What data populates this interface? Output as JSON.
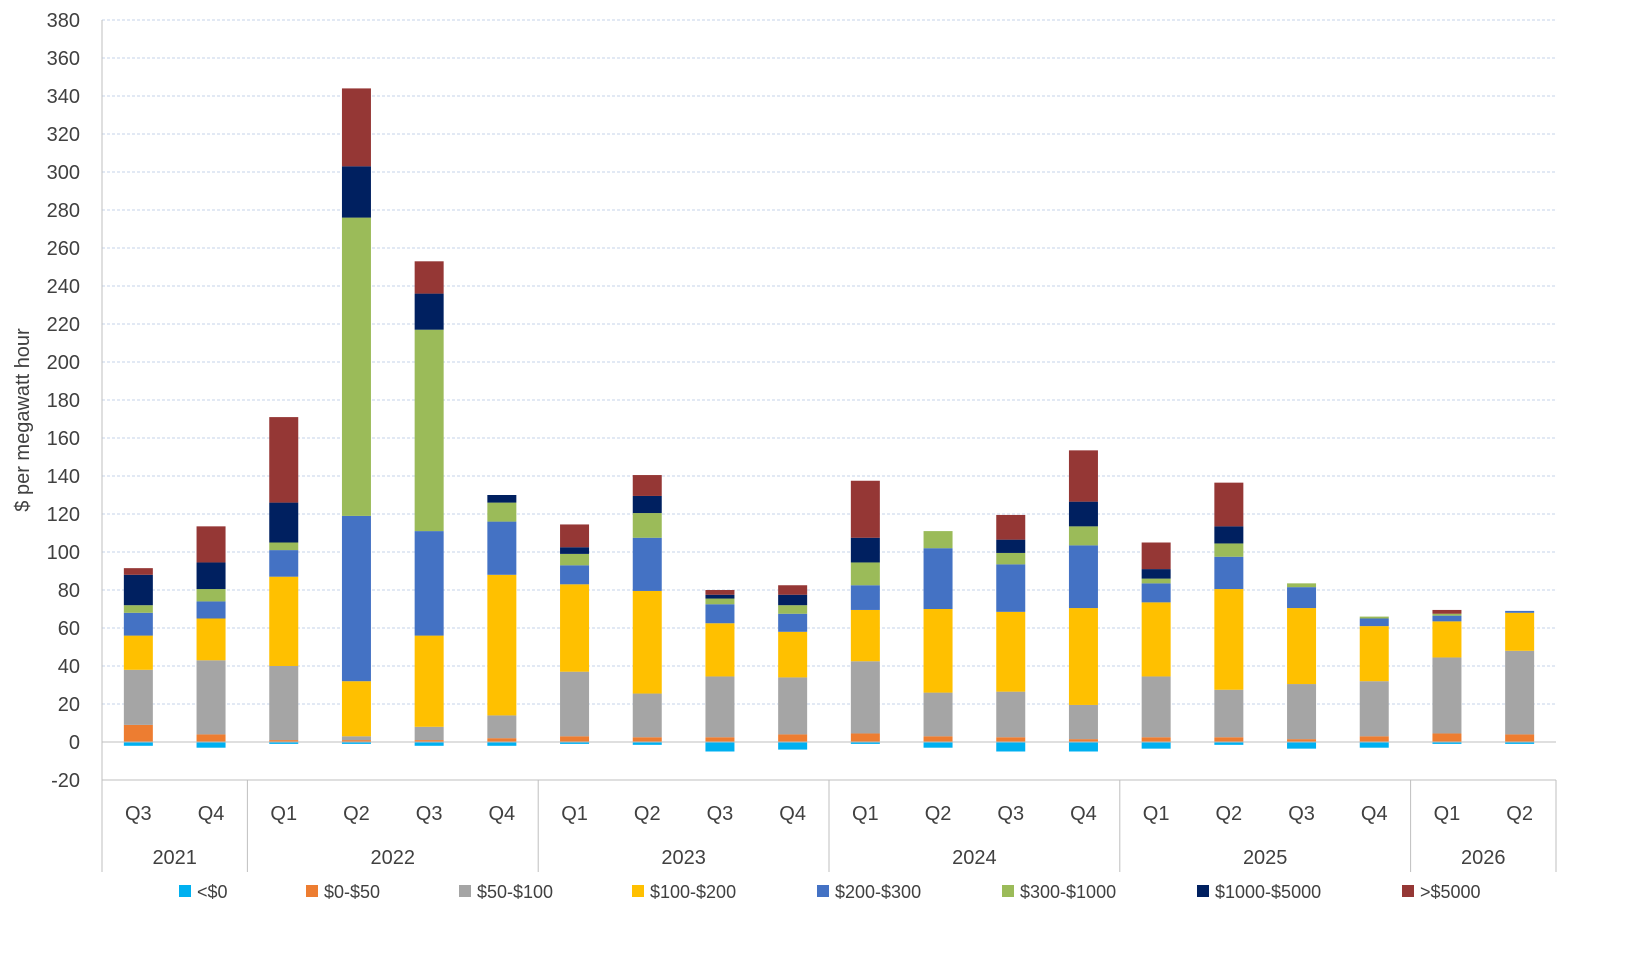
{
  "chart_data": {
    "type": "bar",
    "stacked": true,
    "title": "",
    "ylabel": "$ per megawatt hour",
    "ylim": [
      -20,
      380
    ],
    "y_ticks": [
      -20,
      0,
      20,
      40,
      60,
      80,
      100,
      120,
      140,
      160,
      180,
      200,
      220,
      240,
      260,
      280,
      300,
      320,
      340,
      360,
      380
    ],
    "grid": "horizontal dashed",
    "legend_position": "bottom",
    "categories": [
      "Q3",
      "Q4",
      "Q1",
      "Q2",
      "Q3",
      "Q4",
      "Q1",
      "Q2",
      "Q3",
      "Q4",
      "Q1",
      "Q2",
      "Q3",
      "Q4",
      "Q1",
      "Q2",
      "Q3",
      "Q4",
      "Q1",
      "Q2"
    ],
    "year_groups": [
      {
        "label": "2021",
        "count": 2
      },
      {
        "label": "2022",
        "count": 4
      },
      {
        "label": "2023",
        "count": 4
      },
      {
        "label": "2024",
        "count": 4
      },
      {
        "label": "2025",
        "count": 4
      },
      {
        "label": "2026",
        "count": 2
      }
    ],
    "series": [
      {
        "name": "<$0",
        "color": "#00B0F0",
        "values": [
          -2,
          -3,
          -1,
          -1,
          -2,
          -2,
          -1,
          -1.5,
          -5,
          -4,
          -1,
          -3,
          -5,
          -5,
          -3.5,
          -1.5,
          -3.5,
          -3,
          -1,
          -1
        ]
      },
      {
        "name": "$0-$50",
        "color": "#ED7D31",
        "values": [
          9,
          4,
          1,
          1,
          1,
          2,
          3,
          2.5,
          2.5,
          4,
          4.5,
          3,
          2.5,
          1.5,
          2.5,
          2.5,
          1.5,
          3,
          4.5,
          4
        ]
      },
      {
        "name": "$50-$100",
        "color": "#A5A5A5",
        "values": [
          29,
          39,
          39,
          2,
          7,
          12,
          34,
          23,
          32,
          30,
          38,
          23,
          24,
          18,
          32,
          25,
          29,
          29,
          40,
          44
        ]
      },
      {
        "name": "$100-$200",
        "color": "#FFC000",
        "values": [
          18,
          22,
          47,
          29,
          48,
          74,
          46,
          54,
          28,
          24,
          27,
          44,
          42,
          51,
          39,
          53,
          40,
          29,
          19,
          20
        ]
      },
      {
        "name": "$200-$300",
        "color": "#4472C4",
        "values": [
          12,
          9,
          14,
          87,
          55,
          28,
          10,
          28,
          10,
          9.5,
          13,
          32,
          25,
          33,
          10,
          17,
          11,
          4,
          3,
          1
        ]
      },
      {
        "name": "$300-$1000",
        "color": "#9BBB59",
        "values": [
          4,
          6.5,
          4,
          157,
          106,
          10,
          6,
          13,
          3,
          4.5,
          12,
          9,
          6,
          10,
          2.5,
          7,
          2,
          1,
          1,
          0
        ]
      },
      {
        "name": "$1000-$5000",
        "color": "#002060",
        "values": [
          16,
          14,
          21,
          27,
          19,
          4,
          3.5,
          9,
          2,
          5.5,
          13,
          0,
          7,
          13,
          5,
          9,
          0,
          0,
          0,
          0
        ]
      },
      {
        "name": ">$5000",
        "color": "#953735",
        "values": [
          3.5,
          19,
          45,
          41,
          17,
          0,
          12,
          11,
          2.5,
          5,
          30,
          0,
          13,
          27,
          14,
          23,
          0,
          0,
          2,
          0
        ]
      }
    ]
  }
}
